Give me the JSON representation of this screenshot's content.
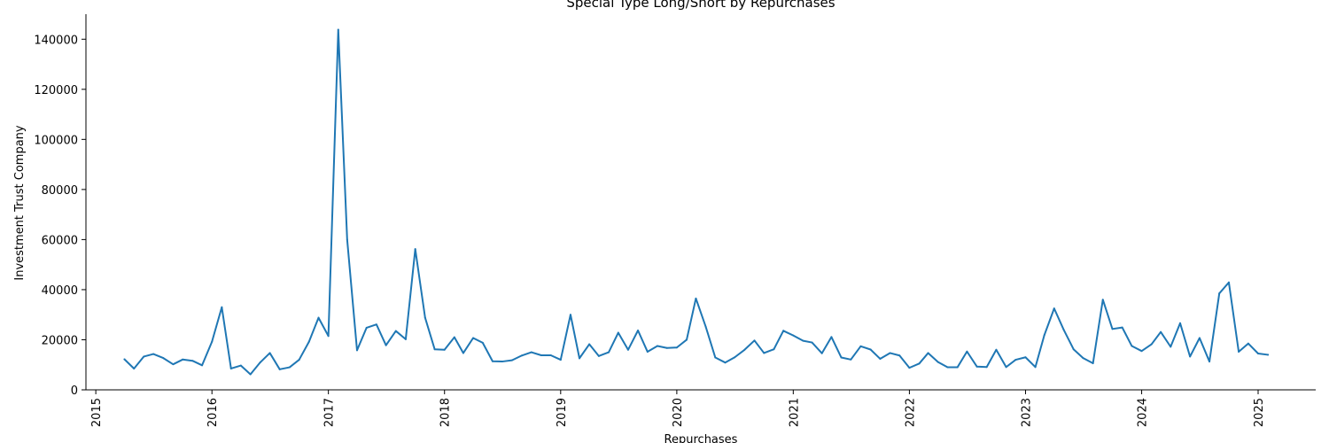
{
  "chart_data": {
    "type": "line",
    "title": "Special Type Long/Short by Repurchases",
    "xlabel": "Repurchases",
    "ylabel": "Investment Trust Company",
    "x_type": "date",
    "xlim": [
      "2014-12-01",
      "2025-07-01"
    ],
    "ylim": [
      0,
      150000
    ],
    "yticks": [
      0,
      20000,
      40000,
      60000,
      80000,
      100000,
      120000,
      140000
    ],
    "xtick_dates": [
      "2015-01-01",
      "2016-01-01",
      "2017-01-01",
      "2018-01-01",
      "2019-01-01",
      "2020-01-01",
      "2021-01-01",
      "2022-01-01",
      "2023-01-01",
      "2024-01-01",
      "2025-01-01"
    ],
    "xtick_labels": [
      "2015",
      "2016",
      "2017",
      "2018",
      "2019",
      "2020",
      "2021",
      "2022",
      "2023",
      "2024",
      "2025"
    ],
    "grid": false,
    "legend": "none",
    "series": [
      {
        "color": "#1f77b4",
        "x": [
          "2015-04",
          "2015-05",
          "2015-06",
          "2015-07",
          "2015-08",
          "2015-09",
          "2015-10",
          "2015-11",
          "2015-12",
          "2016-01",
          "2016-02",
          "2016-03",
          "2016-04",
          "2016-05",
          "2016-06",
          "2016-07",
          "2016-08",
          "2016-09",
          "2016-10",
          "2016-11",
          "2016-12",
          "2017-01",
          "2017-02",
          "2017-03",
          "2017-04",
          "2017-05",
          "2017-06",
          "2017-07",
          "2017-08",
          "2017-09",
          "2017-10",
          "2017-11",
          "2017-12",
          "2018-01",
          "2018-02",
          "2018-03",
          "2018-04",
          "2018-05",
          "2018-06",
          "2018-07",
          "2018-08",
          "2018-09",
          "2018-10",
          "2018-11",
          "2018-12",
          "2019-01",
          "2019-02",
          "2019-03",
          "2019-04",
          "2019-05",
          "2019-06",
          "2019-07",
          "2019-08",
          "2019-09",
          "2019-10",
          "2019-11",
          "2019-12",
          "2020-01",
          "2020-02",
          "2020-03",
          "2020-04",
          "2020-05",
          "2020-06",
          "2020-07",
          "2020-08",
          "2020-09",
          "2020-10",
          "2020-11",
          "2020-12",
          "2021-01",
          "2021-02",
          "2021-03",
          "2021-04",
          "2021-05",
          "2021-06",
          "2021-07",
          "2021-08",
          "2021-09",
          "2021-10",
          "2021-11",
          "2021-12",
          "2022-01",
          "2022-02",
          "2022-03",
          "2022-04",
          "2022-05",
          "2022-06",
          "2022-07",
          "2022-08",
          "2022-09",
          "2022-10",
          "2022-11",
          "2022-12",
          "2023-01",
          "2023-02",
          "2023-03",
          "2023-04",
          "2023-05",
          "2023-06",
          "2023-07",
          "2023-08",
          "2023-09",
          "2023-10",
          "2023-11",
          "2023-12",
          "2024-01",
          "2024-02",
          "2024-03",
          "2024-04",
          "2024-05",
          "2024-06",
          "2024-07",
          "2024-08",
          "2024-09",
          "2024-10",
          "2024-11",
          "2024-12",
          "2025-01",
          "2025-02"
        ],
        "y": [
          12200,
          8500,
          13300,
          14300,
          12700,
          10200,
          12100,
          11600,
          9800,
          19200,
          33000,
          8500,
          9700,
          6200,
          11000,
          14700,
          8200,
          9000,
          12000,
          19200,
          28800,
          21500,
          143800,
          60000,
          15800,
          24800,
          26100,
          17800,
          23500,
          20200,
          56200,
          28800,
          16200,
          16000,
          21000,
          14700,
          20700,
          18800,
          11400,
          11300,
          11800,
          13700,
          15000,
          13800,
          13800,
          12000,
          30000,
          12600,
          18200,
          13500,
          15000,
          22800,
          16000,
          23700,
          15200,
          17500,
          16700,
          16900,
          20000,
          36500,
          25200,
          12900,
          10900,
          13000,
          16000,
          19700,
          14700,
          16200,
          23600,
          21700,
          19600,
          18900,
          14600,
          21100,
          12900,
          12100,
          17400,
          16100,
          12400,
          14700,
          13700,
          8800,
          10500,
          14700,
          11100,
          9000,
          9000,
          15300,
          9300,
          9100,
          16000,
          9100,
          12000,
          13000,
          9100,
          21800,
          32500,
          24000,
          16200,
          12700,
          10600,
          36000,
          24300,
          24900,
          17500,
          15500,
          18200,
          23100,
          17200,
          26600,
          13300,
          20700,
          11300,
          38500,
          42900,
          15200,
          18500,
          14500,
          14000
        ]
      }
    ]
  }
}
